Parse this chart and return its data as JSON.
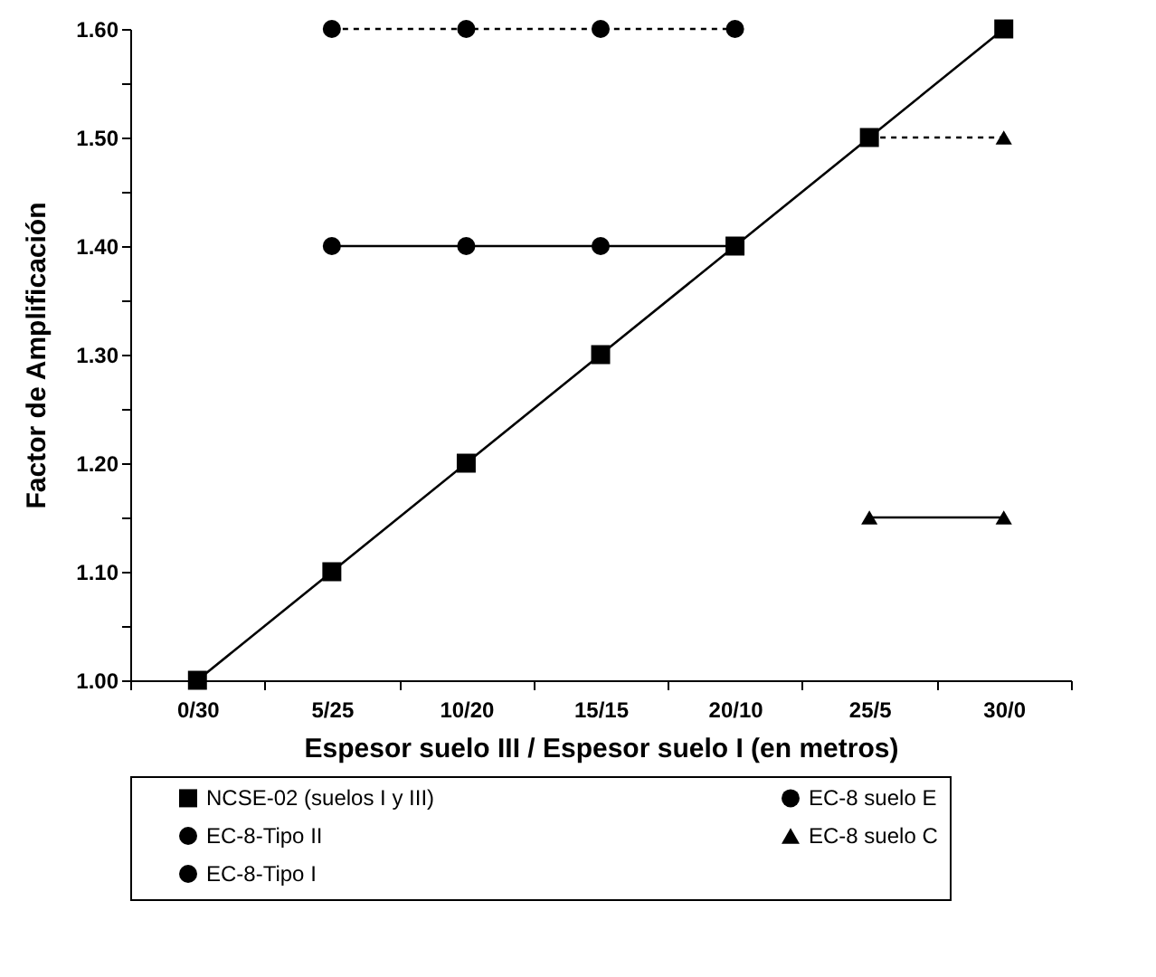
{
  "chart_data": {
    "type": "line",
    "xlabel": "Espesor suelo III / Espesor suelo I (en metros)",
    "ylabel": "Factor de Amplificación",
    "categories": [
      "0/30",
      "5/25",
      "10/20",
      "15/15",
      "20/10",
      "25/5",
      "30/0"
    ],
    "ylim": [
      1.0,
      1.6
    ],
    "yticks": [
      {
        "value": 1.0,
        "label": "1.00"
      },
      {
        "value": 1.05,
        "label": null
      },
      {
        "value": 1.1,
        "label": "1.10"
      },
      {
        "value": 1.15,
        "label": null
      },
      {
        "value": 1.2,
        "label": "1.20"
      },
      {
        "value": 1.25,
        "label": null
      },
      {
        "value": 1.3,
        "label": "1.30"
      },
      {
        "value": 1.35,
        "label": null
      },
      {
        "value": 1.4,
        "label": "1.40"
      },
      {
        "value": 1.45,
        "label": null
      },
      {
        "value": 1.5,
        "label": "1.50"
      },
      {
        "value": 1.55,
        "label": null
      },
      {
        "value": 1.6,
        "label": "1.60"
      }
    ],
    "grid": false,
    "legend": "bottom",
    "series": [
      {
        "name": "NCSE-02 (suelos I y III)",
        "color": "#000000",
        "marker": "square",
        "line_style": "solid",
        "values": [
          1.0,
          1.1,
          1.2,
          1.3,
          1.4,
          1.5,
          1.6
        ]
      },
      {
        "name": "EC-8 suelo E",
        "type": "scatter",
        "color": "#000000",
        "marker": "circle",
        "x": [
          "5/25",
          "10/20",
          "15/15",
          "20/10",
          "5/25",
          "10/20",
          "15/15",
          "20/10"
        ],
        "values": [
          1.6,
          1.6,
          1.6,
          1.6,
          1.4,
          1.4,
          1.4,
          null
        ]
      },
      {
        "name": "EC-8-Tipo II",
        "color": "#000000",
        "marker": "none",
        "line_style": "dashed",
        "values": [
          null,
          1.6,
          1.6,
          1.6,
          1.6,
          null,
          null
        ]
      },
      {
        "name": "EC-8 suelo C",
        "type": "scatter",
        "color": "#000000",
        "marker": "triangle",
        "x": [
          "25/5",
          "30/0",
          "30/0"
        ],
        "values": [
          1.15,
          1.15,
          1.5
        ]
      },
      {
        "name": "EC-8-Tipo I",
        "color": "#000000",
        "marker": "none",
        "line_style": "solid",
        "values": [
          null,
          1.4,
          1.4,
          1.4,
          1.4,
          null,
          null
        ]
      },
      {
        "color": "#000000",
        "marker": "none",
        "line_style": "dashed",
        "values": [
          null,
          null,
          null,
          null,
          null,
          1.5,
          1.5
        ]
      },
      {
        "color": "#000000",
        "marker": "none",
        "line_style": "solid",
        "values": [
          null,
          null,
          null,
          null,
          null,
          1.15,
          1.15
        ]
      }
    ]
  }
}
